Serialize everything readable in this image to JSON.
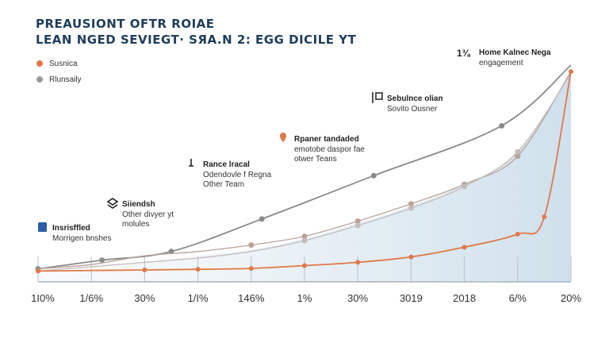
{
  "title_lines": [
    "PREAUSIONT OFTR ROIAE",
    "LEAN NGED SEVIEGT· SЯA.N 2: EGG DICILE YT"
  ],
  "legend": [
    {
      "label": "Susnica",
      "color": "#e0784a"
    },
    {
      "label": "Rlunsaily",
      "color": "#9a9a9a"
    }
  ],
  "chart_data": {
    "type": "line",
    "x_ticks": [
      "1I0%",
      "1/6%",
      "30%",
      "1/I%",
      "146%",
      "1%",
      "30%",
      "3019",
      "2018",
      "6/%",
      "20%"
    ],
    "series": [
      {
        "color": "#8a8a8a",
        "values": [
          [
            0,
            6
          ],
          [
            1.2,
            10
          ],
          [
            2.5,
            14
          ],
          [
            4.2,
            29
          ],
          [
            6.3,
            49
          ],
          [
            8.7,
            72
          ],
          [
            10,
            100
          ]
        ],
        "marker_x": [
          0,
          1.2,
          2.5,
          4.2,
          6.3,
          8.7
        ]
      },
      {
        "color": "#b9a39a",
        "values": [
          [
            0,
            6
          ],
          [
            1,
            8
          ],
          [
            2,
            12
          ],
          [
            3,
            14
          ],
          [
            4,
            17
          ],
          [
            5,
            21
          ],
          [
            6,
            28
          ],
          [
            7,
            36
          ],
          [
            8,
            45
          ],
          [
            9,
            58
          ],
          [
            10,
            97
          ]
        ],
        "marker_x": [
          4,
          5,
          6,
          7,
          8,
          9
        ]
      },
      {
        "color": "#c4bcbc",
        "values": [
          [
            0,
            5
          ],
          [
            1,
            7
          ],
          [
            2,
            9
          ],
          [
            3,
            11
          ],
          [
            4,
            14
          ],
          [
            5,
            19
          ],
          [
            6,
            26
          ],
          [
            7,
            34
          ],
          [
            8,
            44
          ],
          [
            9,
            60
          ],
          [
            10,
            96
          ]
        ],
        "marker_x": [
          5,
          6,
          7,
          8,
          9
        ]
      },
      {
        "color": "#e0784a",
        "values": [
          [
            0,
            5
          ],
          [
            2,
            5.5
          ],
          [
            3,
            5.8
          ],
          [
            4,
            6.2
          ],
          [
            5,
            7.5
          ],
          [
            6,
            9
          ],
          [
            7,
            11.5
          ],
          [
            8,
            16
          ],
          [
            9,
            22
          ],
          [
            9.5,
            30
          ],
          [
            10,
            97
          ]
        ],
        "marker_x": [
          0,
          2,
          3,
          4,
          5,
          6,
          7,
          8,
          9,
          9.5,
          10
        ]
      }
    ],
    "area": {
      "color": "#cfe0ec",
      "values": [
        [
          0,
          5
        ],
        [
          1,
          7
        ],
        [
          2,
          9
        ],
        [
          3,
          12
        ],
        [
          4,
          15
        ],
        [
          5,
          20
        ],
        [
          6,
          27
        ],
        [
          7,
          35
        ],
        [
          8,
          45
        ],
        [
          9,
          60
        ],
        [
          10,
          97
        ]
      ]
    },
    "xlim": [
      0,
      10
    ],
    "ylim": [
      0,
      100
    ]
  },
  "annotations": [
    {
      "icon": "book-icon",
      "title": "Insrisffled",
      "sub": "Morrigen bnshes"
    },
    {
      "icon": "stack-icon",
      "title": "Siiendsh",
      "sub": "Other divyer yt|molules"
    },
    {
      "icon": "lamp-icon",
      "title": "Rance lracal",
      "sub": "Odendovle f Regna|Other Team"
    },
    {
      "icon": "pin-icon",
      "title": "Rpaner tandaded",
      "sub": "emotobe daspor fae|otwer Teans"
    },
    {
      "icon": "flag-icon",
      "title": "Sebulnce olian",
      "sub": "Sovito Ousner"
    },
    {
      "icon": "number-icon",
      "icon_text": "1¾",
      "title": "Home Kalnec Nega",
      "sub": "engagement"
    }
  ]
}
